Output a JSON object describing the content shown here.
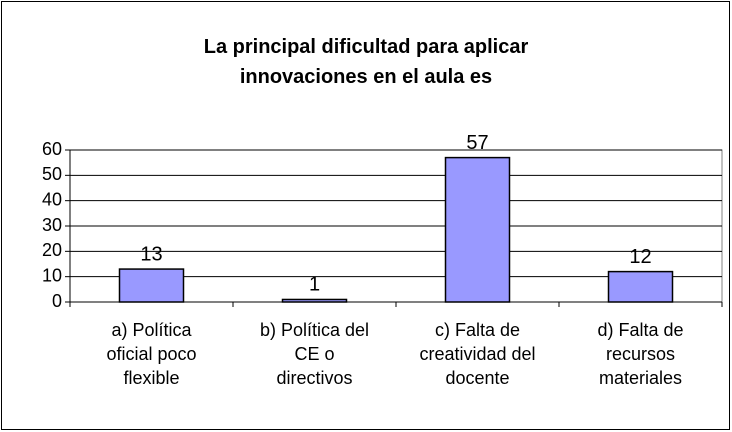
{
  "chart_data": {
    "type": "bar",
    "title": "La principal dificultad para aplicar innovaciones en el aula es",
    "categories": [
      "a) Política oficial poco flexible",
      "b) Política del CE o directivos",
      "c) Falta de creatividad del docente",
      "d) Falta de recursos materiales"
    ],
    "values": [
      13,
      1,
      57,
      12
    ],
    "color": "#9999ff",
    "ylim": [
      0,
      60
    ],
    "yticks": [
      0,
      10,
      20,
      30,
      40,
      50,
      60
    ],
    "grid": true
  }
}
